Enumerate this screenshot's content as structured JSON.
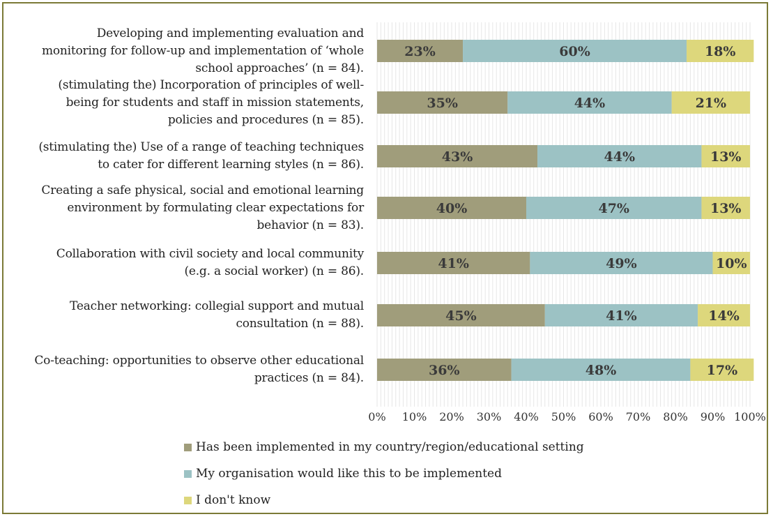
{
  "chart_data": {
    "type": "bar",
    "orientation": "horizontal",
    "stacked": true,
    "categories": [
      "Developing and implementing evaluation and monitoring for follow-up and implementation of ‘whole school approaches’ (n = 84).",
      "(stimulating the) Incorporation of principles of well-being for students and staff in mission statements, policies and procedures (n = 85).",
      "(stimulating the) Use of a range of teaching techniques to cater for different learning styles (n = 86).",
      "Creating a safe physical, social and emotional learning environment by formulating clear expectations for behavior (n = 83).",
      "Collaboration with civil society and local community (e.g. a social worker) (n = 86).",
      "Teacher networking: collegial support and mutual consultation (n = 88).",
      "Co-teaching: opportunities to observe other educational practices (n = 84)."
    ],
    "series": [
      {
        "name": "Has been implemented in my country/region/educational setting",
        "color": "#a09d7b",
        "values": [
          23,
          35,
          43,
          40,
          41,
          45,
          36
        ]
      },
      {
        "name": "My organisation would like this to be implemented",
        "color": "#9cc2c4",
        "values": [
          60,
          44,
          44,
          47,
          49,
          41,
          48
        ]
      },
      {
        "name": "I don't know",
        "color": "#ddd77c",
        "values": [
          18,
          21,
          13,
          13,
          10,
          14,
          17
        ]
      }
    ],
    "xlim": [
      0,
      100
    ],
    "x_ticks": [
      "0%",
      "10%",
      "20%",
      "30%",
      "40%",
      "50%",
      "60%",
      "70%",
      "80%",
      "90%",
      "100%"
    ],
    "grid": true,
    "legend_position": "bottom"
  }
}
